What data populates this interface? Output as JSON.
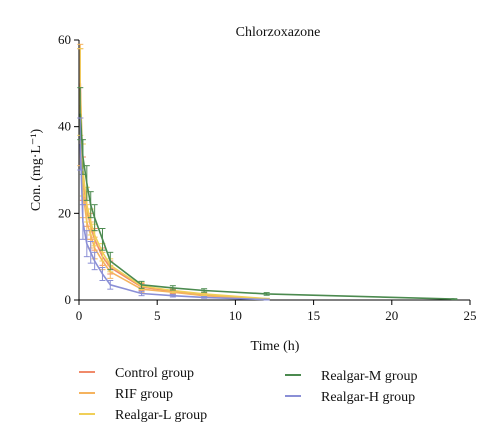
{
  "chart_data": {
    "type": "line",
    "title": "Chlorzoxazone",
    "xlabel": "Time (h)",
    "ylabel": "Con. (mg·L⁻¹)",
    "xlim": [
      0,
      25
    ],
    "ylim": [
      0,
      60
    ],
    "xticks": [
      0,
      5,
      10,
      15,
      20,
      25
    ],
    "yticks": [
      0,
      20,
      40,
      60
    ],
    "grid": false,
    "legend_position": "bottom",
    "series": [
      {
        "name": "Control group",
        "color": "#f08a6a",
        "x": [
          0.083,
          0.25,
          0.5,
          0.75,
          1,
          1.5,
          2,
          4,
          6,
          8,
          12
        ],
        "y": [
          50,
          28,
          21,
          17,
          14,
          10,
          7.5,
          3.0,
          2.0,
          1.2,
          0.2
        ],
        "err": [
          8,
          5,
          4,
          3,
          2.5,
          2,
          1.5,
          0.8,
          0.5,
          0.4,
          0.1
        ]
      },
      {
        "name": "RIF group",
        "color": "#f5b35e",
        "x": [
          0.083,
          0.25,
          0.5,
          0.75,
          1,
          1.5,
          2,
          4,
          6,
          8,
          12
        ],
        "y": [
          45,
          25,
          18,
          15,
          12,
          9,
          6.5,
          2.5,
          1.8,
          1.0,
          0.2
        ],
        "err": [
          14,
          6,
          4,
          3,
          2.5,
          2,
          1.5,
          0.8,
          0.5,
          0.4,
          0.1
        ]
      },
      {
        "name": "Realgar-L group",
        "color": "#f0cf58",
        "x": [
          0.083,
          0.25,
          0.5,
          0.75,
          1,
          1.5,
          2,
          4,
          6,
          8,
          12
        ],
        "y": [
          48,
          30,
          22,
          18,
          15,
          11,
          8,
          3.2,
          2.2,
          1.4,
          0.3
        ],
        "err": [
          10,
          6,
          4,
          3,
          2.5,
          2,
          1.5,
          0.8,
          0.5,
          0.4,
          0.1
        ]
      },
      {
        "name": "Realgar-M group",
        "color": "#4b8a4f",
        "x": [
          0.083,
          0.25,
          0.5,
          0.75,
          1,
          1.5,
          2,
          4,
          6,
          8,
          12,
          24
        ],
        "y": [
          43,
          33,
          27,
          22,
          19,
          14,
          9,
          3.5,
          2.8,
          2.2,
          1.4,
          0.2
        ],
        "err": [
          6,
          4,
          4,
          3,
          3,
          2.5,
          2,
          0.8,
          0.5,
          0.4,
          0.3,
          0.1
        ]
      },
      {
        "name": "Realgar-H group",
        "color": "#8a8fd6",
        "x": [
          0.083,
          0.25,
          0.5,
          0.75,
          1,
          1.5,
          2,
          4,
          6,
          8,
          12
        ],
        "y": [
          36,
          18,
          13,
          11,
          9,
          6,
          3.5,
          1.5,
          1.0,
          0.6,
          0.1
        ],
        "err": [
          6,
          4,
          3,
          2.5,
          2,
          1.5,
          1,
          0.5,
          0.3,
          0.2,
          0.1
        ]
      }
    ]
  }
}
